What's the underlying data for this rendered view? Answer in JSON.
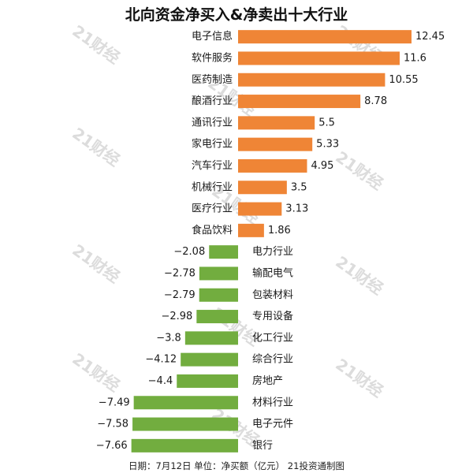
{
  "title": "北向资金净买入&净卖出十大行业",
  "footer": "日期：7月12日 单位：净买额（亿元） 21投资通制图",
  "watermark": "21财经",
  "chart_data": {
    "type": "bar",
    "orientation": "horizontal",
    "title": "北向资金净买入&净卖出十大行业",
    "categories": [
      "电子信息",
      "软件服务",
      "医药制造",
      "酿酒行业",
      "通讯行业",
      "家电行业",
      "汽车行业",
      "机械行业",
      "医疗行业",
      "食品饮料",
      "电力行业",
      "输配电气",
      "包装材料",
      "专用设备",
      "化工行业",
      "综合行业",
      "房地产",
      "材料行业",
      "电子元件",
      "银行"
    ],
    "values": [
      12.45,
      11.6,
      10.55,
      8.78,
      5.5,
      5.33,
      4.95,
      3.5,
      3.13,
      1.86,
      -2.08,
      -2.78,
      -2.79,
      -2.98,
      -3.8,
      -4.12,
      -4.4,
      -7.49,
      -7.58,
      -7.66
    ],
    "value_labels": [
      "12.45",
      "11.6",
      "10.55",
      "8.78",
      "5.5",
      "5.33",
      "4.95",
      "3.5",
      "3.13",
      "1.86",
      "−2.08",
      "−2.78",
      "−2.79",
      "−2.98",
      "−3.8",
      "−4.12",
      "−4.4",
      "−7.49",
      "−7.58",
      "−7.66"
    ],
    "colors": {
      "positive": "#ef8536",
      "negative": "#72ad3f"
    },
    "xlim": [
      -7.66,
      12.45
    ],
    "grid": false,
    "legend": "none"
  }
}
